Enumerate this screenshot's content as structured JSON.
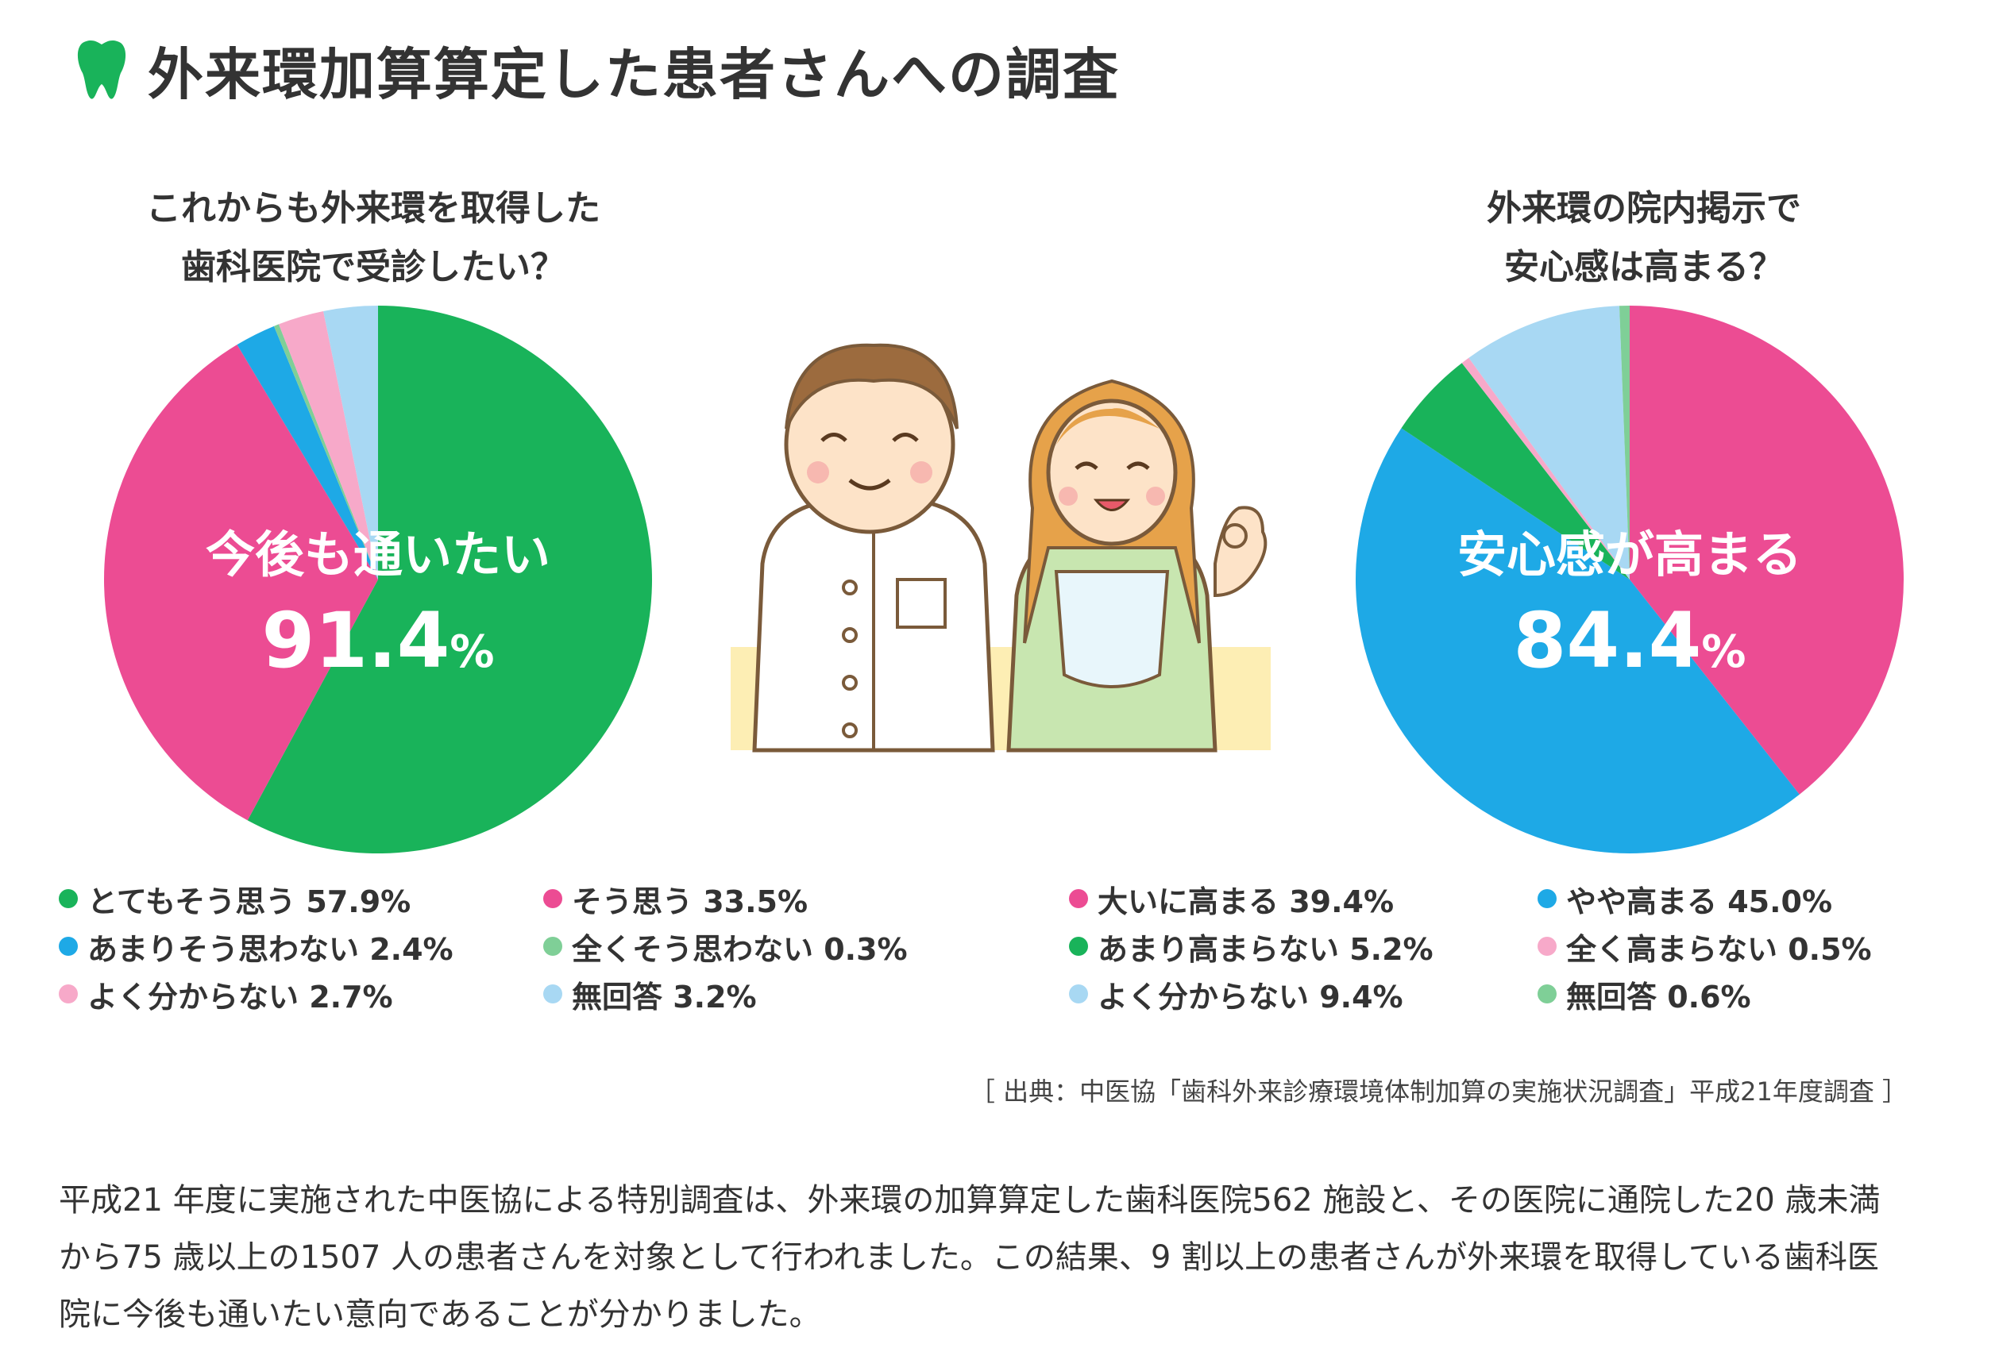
{
  "header": {
    "title": "外来環加算算定した患者さんへの調査",
    "icon": "tooth-icon",
    "icon_color": "#19b35a"
  },
  "chart_data": [
    {
      "type": "pie",
      "title_lines": [
        "これからも外来環を取得した",
        "歯科医院で受診したい？"
      ],
      "center_label": "今後も通いたい",
      "center_value": "91.4",
      "center_unit": "%",
      "series": [
        {
          "label": "とてもそう思う 57.9%",
          "value": 57.9,
          "color": "#19b35a"
        },
        {
          "label": "そう思う 33.5%",
          "value": 33.5,
          "color": "#ec4c93"
        },
        {
          "label": "あまりそう思わない 2.4%",
          "value": 2.4,
          "color": "#1ea9e6"
        },
        {
          "label": "全くそう思わない 0.3%",
          "value": 0.3,
          "color": "#7fcf97"
        },
        {
          "label": "よく分からない 2.7%",
          "value": 2.7,
          "color": "#f7a9c9"
        },
        {
          "label": "無回答 3.2%",
          "value": 3.2,
          "color": "#a8d8f3"
        }
      ]
    },
    {
      "type": "pie",
      "title_lines": [
        "外来環の院内掲示で",
        "安心感は高まる？"
      ],
      "center_label": "安心感が高まる",
      "center_value": "84.4",
      "center_unit": "%",
      "series": [
        {
          "label": "大いに高まる 39.4%",
          "value": 39.4,
          "color": "#ec4c93"
        },
        {
          "label": "やや高まる 45.0%",
          "value": 45.0,
          "color": "#1ea9e6"
        },
        {
          "label": "あまり高まらない 5.2%",
          "value": 5.2,
          "color": "#19b35a"
        },
        {
          "label": "全く高まらない 0.5%",
          "value": 0.5,
          "color": "#f7a9c9"
        },
        {
          "label": "よく分からない 9.4%",
          "value": 9.4,
          "color": "#a8d8f3"
        },
        {
          "label": "無回答 0.6%",
          "value": 0.6,
          "color": "#7fcf97"
        }
      ]
    }
  ],
  "source": "［ 出典：中医協「歯科外来診療環境体制加算の実施状況調査」平成21年度調査 ］",
  "body_text": "平成21 年度に実施された中医協による特別調査は、外来環の加算算定した歯科医院562 施設と、その医院に通院した20 歳未満から75 歳以上の1507 人の患者さんを対象として行われました。この結果、9 割以上の患者さんが外来環を取得している歯科医院に今後も通いたい意向であることが分かりました。"
}
